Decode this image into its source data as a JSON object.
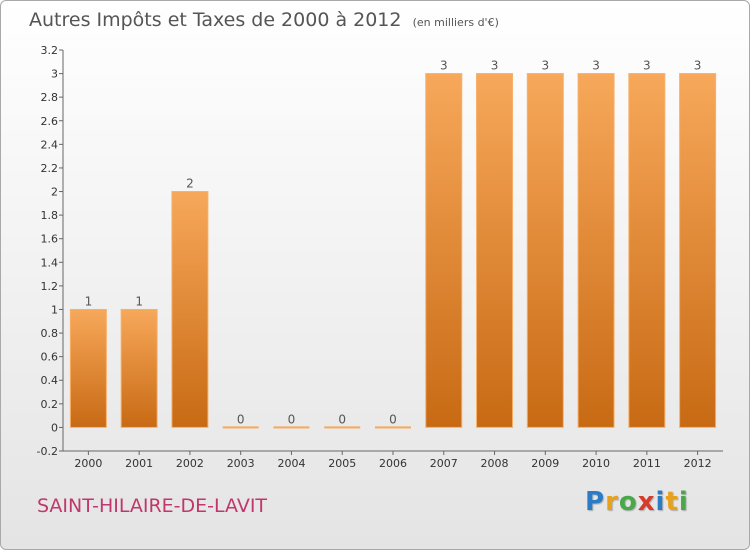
{
  "title": "Autres Impôts et Taxes de 2000 à 2012",
  "subtitle": "(en milliers d'€)",
  "commune": "SAINT-HILAIRE-DE-LAVIT",
  "logo": {
    "letters": [
      "P",
      "r",
      "o",
      "x",
      "i",
      "t",
      "i"
    ],
    "colors": [
      "#2b7cc7",
      "#e8a11c",
      "#4aa84a",
      "#d83b2b",
      "#2b7cc7",
      "#e8a11c",
      "#4aa84a"
    ]
  },
  "colors": {
    "bar": "#f08a2c",
    "bar_light": "#f7a85a",
    "bar_dark": "#c86a14",
    "text": "#555555",
    "commune": "#c0376d"
  },
  "chart_data": {
    "type": "bar",
    "categories": [
      "2000",
      "2001",
      "2002",
      "2003",
      "2004",
      "2005",
      "2006",
      "2007",
      "2008",
      "2009",
      "2010",
      "2011",
      "2012"
    ],
    "values": [
      1,
      1,
      2,
      0,
      0,
      0,
      0,
      3,
      3,
      3,
      3,
      3,
      3
    ],
    "value_labels": [
      "1",
      "1",
      "2",
      "0",
      "0",
      "0",
      "0",
      "3",
      "3",
      "3",
      "3",
      "3",
      "3"
    ],
    "ylim": [
      -0.2,
      3.2
    ],
    "yticks": [
      -0.2,
      0,
      0.2,
      0.4,
      0.6,
      0.8,
      1,
      1.2,
      1.4,
      1.6,
      1.8,
      2,
      2.2,
      2.4,
      2.6,
      2.8,
      3,
      3.2
    ],
    "ytick_labels": [
      "-0.2",
      "0",
      "0.2",
      "0.4",
      "0.6",
      "0.8",
      "1",
      "1.2",
      "1.4",
      "1.6",
      "1.8",
      "2",
      "2.2",
      "2.4",
      "2.6",
      "2.8",
      "3",
      "3.2"
    ],
    "title": "Autres Impôts et Taxes de 2000 à 2012",
    "xlabel": "",
    "ylabel": "",
    "grid": false
  }
}
